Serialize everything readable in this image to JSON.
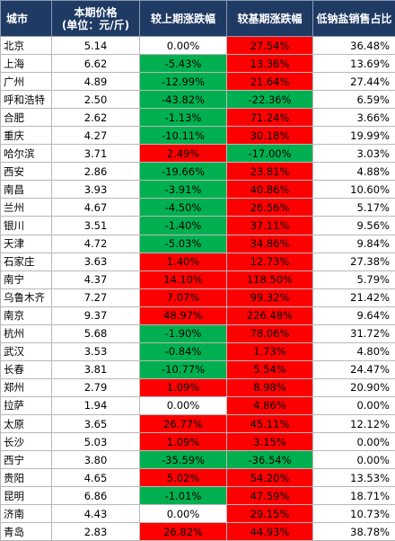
{
  "table": {
    "headers": {
      "city": "城市",
      "price_line1": "本期价格",
      "price_line2": "(单位：元/斤)",
      "mom": "较上期涨跌幅",
      "yoy": "较基期涨跌幅",
      "share": "低钠盐销售占比"
    },
    "colors": {
      "header_bg": "#1f3a63",
      "increase": "#ff0000",
      "decrease": "#00b050",
      "unchanged": "#ffffff"
    },
    "rows": [
      {
        "city": "北京",
        "price": "5.14",
        "mom": "0.00%",
        "yoy": "27.54%",
        "share": "36.48%"
      },
      {
        "city": "上海",
        "price": "6.62",
        "mom": "-5.43%",
        "yoy": "13.36%",
        "share": "13.69%"
      },
      {
        "city": "广州",
        "price": "4.89",
        "mom": "-12.99%",
        "yoy": "21.64%",
        "share": "27.44%"
      },
      {
        "city": "呼和浩特",
        "price": "2.50",
        "mom": "-43.82%",
        "yoy": "-22.36%",
        "share": "6.59%"
      },
      {
        "city": "合肥",
        "price": "2.62",
        "mom": "-1.13%",
        "yoy": "71.24%",
        "share": "3.66%"
      },
      {
        "city": "重庆",
        "price": "4.27",
        "mom": "-10.11%",
        "yoy": "30.18%",
        "share": "19.99%"
      },
      {
        "city": "哈尔滨",
        "price": "3.71",
        "mom": "2.49%",
        "yoy": "-17.00%",
        "share": "3.03%"
      },
      {
        "city": "西安",
        "price": "2.86",
        "mom": "-19.66%",
        "yoy": "23.81%",
        "share": "4.88%"
      },
      {
        "city": "南昌",
        "price": "3.93",
        "mom": "-3.91%",
        "yoy": "40.86%",
        "share": "10.60%"
      },
      {
        "city": "兰州",
        "price": "4.67",
        "mom": "-4.50%",
        "yoy": "26.56%",
        "share": "5.17%"
      },
      {
        "city": "银川",
        "price": "3.51",
        "mom": "-1.40%",
        "yoy": "37.11%",
        "share": "9.56%"
      },
      {
        "city": "天津",
        "price": "4.72",
        "mom": "-5.03%",
        "yoy": "34.86%",
        "share": "9.84%"
      },
      {
        "city": "石家庄",
        "price": "3.63",
        "mom": "1.40%",
        "yoy": "12.73%",
        "share": "27.38%"
      },
      {
        "city": "南宁",
        "price": "4.37",
        "mom": "14.10%",
        "yoy": "118.50%",
        "share": "5.79%"
      },
      {
        "city": "乌鲁木齐",
        "price": "7.27",
        "mom": "7.07%",
        "yoy": "99.32%",
        "share": "21.42%"
      },
      {
        "city": "南京",
        "price": "9.37",
        "mom": "48.97%",
        "yoy": "226.48%",
        "share": "9.64%"
      },
      {
        "city": "杭州",
        "price": "5.68",
        "mom": "-1.90%",
        "yoy": "78.06%",
        "share": "31.72%"
      },
      {
        "city": "武汉",
        "price": "3.53",
        "mom": "-0.84%",
        "yoy": "1.73%",
        "share": "4.80%"
      },
      {
        "city": "长春",
        "price": "3.81",
        "mom": "-10.77%",
        "yoy": "5.54%",
        "share": "24.47%"
      },
      {
        "city": "郑州",
        "price": "2.79",
        "mom": "1.09%",
        "yoy": "8.98%",
        "share": "20.90%"
      },
      {
        "city": "拉萨",
        "price": "1.94",
        "mom": "0.00%",
        "yoy": "4.86%",
        "share": "0.00%"
      },
      {
        "city": "太原",
        "price": "3.65",
        "mom": "26.77%",
        "yoy": "45.11%",
        "share": "12.12%"
      },
      {
        "city": "长沙",
        "price": "5.03",
        "mom": "1.09%",
        "yoy": "3.15%",
        "share": "0.00%"
      },
      {
        "city": "西宁",
        "price": "3.80",
        "mom": "-35.59%",
        "yoy": "-36.54%",
        "share": "0.00%"
      },
      {
        "city": "贵阳",
        "price": "4.65",
        "mom": "5.02%",
        "yoy": "54.20%",
        "share": "13.53%"
      },
      {
        "city": "昆明",
        "price": "6.86",
        "mom": "-1.01%",
        "yoy": "47.59%",
        "share": "18.71%"
      },
      {
        "city": "济南",
        "price": "4.43",
        "mom": "0.00%",
        "yoy": "29.15%",
        "share": "10.73%"
      },
      {
        "city": "青岛",
        "price": "2.83",
        "mom": "26.82%",
        "yoy": "44.93%",
        "share": "38.78%"
      }
    ]
  }
}
